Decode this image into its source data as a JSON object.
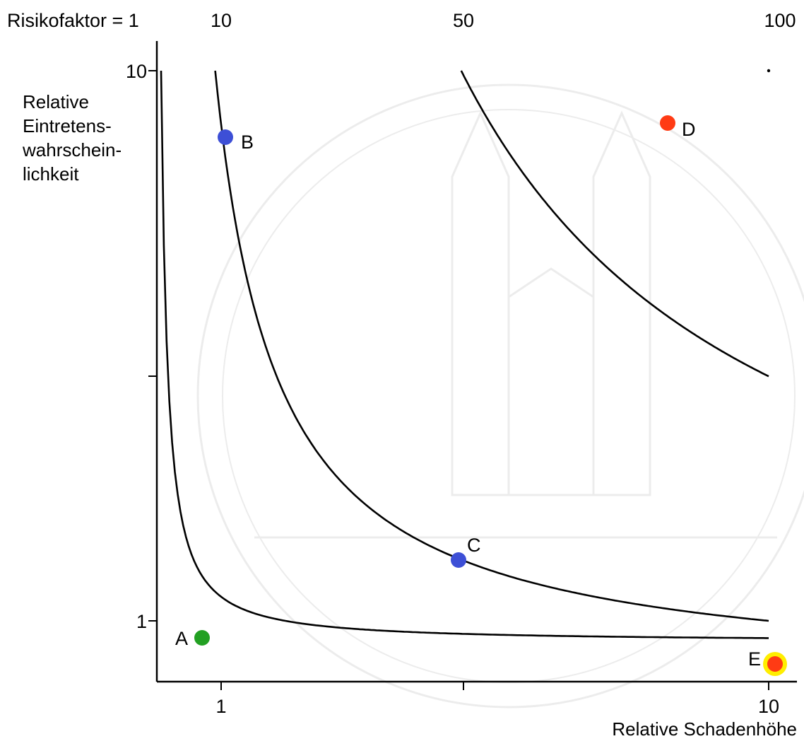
{
  "chart_data": {
    "type": "scatter",
    "title": "",
    "xlabel": "Relative Schadenhöhe",
    "ylabel_lines": [
      "Relative",
      "Eintretens-",
      "wahrschein-",
      "lichkeit"
    ],
    "x_scale": "linear",
    "y_scale": "linear",
    "xlim": [
      0,
      10
    ],
    "ylim": [
      0,
      10
    ],
    "grid": false,
    "x_ticks": [
      {
        "value": 1,
        "label": "1"
      },
      {
        "value": 5,
        "label": ""
      },
      {
        "value": 10,
        "label": "10"
      }
    ],
    "y_ticks": [
      {
        "value": 1,
        "label": "1"
      },
      {
        "value": 5,
        "label": ""
      },
      {
        "value": 10,
        "label": "10"
      }
    ],
    "iso_risk": {
      "header_label": "Risikofaktor = 1",
      "curves": [
        {
          "risk_factor": 1,
          "label": "",
          "x_from": 0.12,
          "x_to": 10
        },
        {
          "risk_factor": 10,
          "label": "10",
          "x_from": 1,
          "x_to": 10
        },
        {
          "risk_factor": 50,
          "label": "50",
          "x_from": 5,
          "x_to": 10
        },
        {
          "risk_factor": 100,
          "label": "100",
          "x_from": 10,
          "x_to": 10
        }
      ]
    },
    "points": [
      {
        "label": "A",
        "x": 0.85,
        "y": 0.85,
        "color": "#22a022",
        "halo": ""
      },
      {
        "label": "B",
        "x": 1.05,
        "y": 8.7,
        "color": "#3d4fd6",
        "halo": ""
      },
      {
        "label": "C",
        "x": 4.9,
        "y": 1.12,
        "color": "#3d4fd6",
        "halo": ""
      },
      {
        "label": "D",
        "x": 9.4,
        "y": 9.45,
        "color": "#ff3b14",
        "halo": ""
      },
      {
        "label": "E",
        "x": 10.1,
        "y": 0.68,
        "color": "#ff3b14",
        "halo": "#ffee00"
      }
    ]
  }
}
